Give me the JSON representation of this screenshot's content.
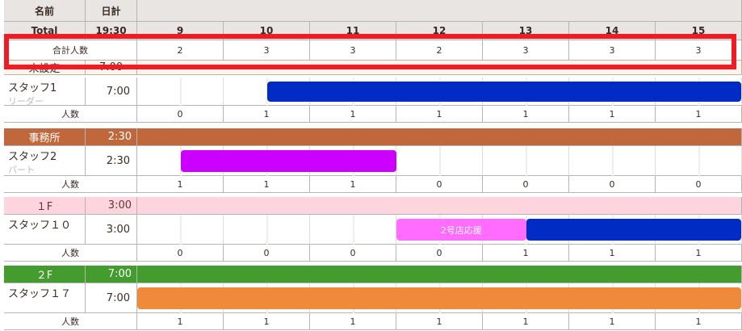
{
  "header": {
    "name_label": "名前",
    "daily_label": "日計",
    "total_label": "Total",
    "total_value": "19:30",
    "hours": [
      "9",
      "10",
      "11",
      "12",
      "13",
      "14",
      "15"
    ]
  },
  "summary": {
    "label": "合計人数",
    "counts": [
      "2",
      "3",
      "3",
      "2",
      "3",
      "3",
      "3"
    ]
  },
  "unassigned": {
    "label": "未設定",
    "value": "7:00"
  },
  "count_label": "人数",
  "groups": [
    {
      "name": "",
      "total": "",
      "color": "#fdf3ea",
      "text_color": "#3a2a22",
      "staff": {
        "name": "スタッフ1",
        "role": "リーダー",
        "time": "7:00",
        "bars": [
          {
            "start": 10,
            "end": 16,
            "color": "#002bc4",
            "label": ""
          }
        ]
      },
      "counts": [
        "0",
        "1",
        "1",
        "1",
        "1",
        "1",
        "1"
      ],
      "hidden_header": true
    },
    {
      "name": "事務所",
      "total": "2:30",
      "color": "#c1673c",
      "text_color": "#ffffff",
      "staff": {
        "name": "スタッフ2",
        "role": "パート",
        "time": "2:30",
        "bars": [
          {
            "start": 9,
            "end": 11.5,
            "color": "#cc00ff",
            "label": ""
          }
        ]
      },
      "counts": [
        "1",
        "1",
        "1",
        "0",
        "0",
        "0",
        "0"
      ]
    },
    {
      "name": "１F",
      "total": "3:00",
      "color": "#fed5df",
      "text_color": "#5a3a32",
      "staff": {
        "name": "スタッフ１０",
        "role": "",
        "time": "3:00",
        "bars": [
          {
            "start": 11.5,
            "end": 13,
            "color": "#ff6cff",
            "label": "2号店応援"
          },
          {
            "start": 13,
            "end": 16,
            "color": "#002bc4",
            "label": ""
          }
        ]
      },
      "counts": [
        "0",
        "0",
        "0",
        "0",
        "1",
        "1",
        "1"
      ]
    },
    {
      "name": "２F",
      "total": "7:00",
      "color": "#459c2e",
      "text_color": "#ffffff",
      "staff": {
        "name": "スタッフ１７",
        "role": "",
        "time": "7:00",
        "bars": [
          {
            "start": 8.5,
            "end": 16,
            "color": "#ee8a39",
            "label": ""
          }
        ]
      },
      "counts": [
        "1",
        "1",
        "1",
        "1",
        "1",
        "1",
        "1"
      ]
    }
  ]
}
